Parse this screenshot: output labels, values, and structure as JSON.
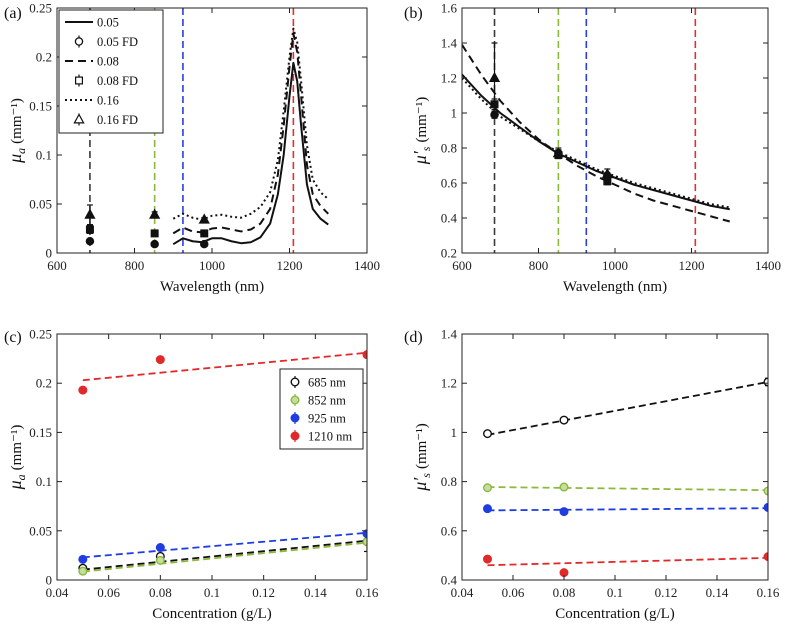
{
  "chart_data": [
    {
      "panel_label": "(a)",
      "type": "line",
      "xlabel": "Wavelength (nm)",
      "ylabel": "μ",
      "ylabel_sub": "a",
      "ylabel_unit": "(mm⁻¹)",
      "xlim": [
        600,
        1400
      ],
      "ylim": [
        0,
        0.25
      ],
      "xticks": [
        600,
        800,
        1000,
        1200,
        1400
      ],
      "yticks": [
        0,
        0.05,
        0.1,
        0.15,
        0.2,
        0.25
      ],
      "ytick_labels": [
        "0",
        "0.05",
        "0.1",
        "0.15",
        "0.2",
        "0.25"
      ],
      "legend_position": "top-left",
      "vlines": [
        {
          "x": 685,
          "color": "#3a3a3a"
        },
        {
          "x": 852,
          "color": "#8cb83c"
        },
        {
          "x": 925,
          "color": "#2a3ee0"
        },
        {
          "x": 1210,
          "color": "#e03030"
        }
      ],
      "series": [
        {
          "name": "0.05",
          "dash": "solid",
          "width": 2,
          "x": [
            900,
            925,
            950,
            975,
            1000,
            1025,
            1050,
            1075,
            1100,
            1125,
            1150,
            1170,
            1185,
            1200,
            1210,
            1220,
            1230,
            1245,
            1260,
            1280,
            1300
          ],
          "y": [
            0.009,
            0.015,
            0.012,
            0.011,
            0.015,
            0.015,
            0.012,
            0.01,
            0.011,
            0.016,
            0.03,
            0.06,
            0.1,
            0.16,
            0.194,
            0.175,
            0.13,
            0.07,
            0.045,
            0.035,
            0.029
          ]
        },
        {
          "name": "0.05 FD",
          "marker": "circle",
          "x": [
            685,
            852,
            980
          ],
          "y": [
            0.012,
            0.009,
            0.009
          ],
          "err": [
            0.002,
            0.002,
            0.001
          ]
        },
        {
          "name": "0.08",
          "dash": "dashed",
          "width": 2,
          "x": [
            900,
            925,
            950,
            975,
            1000,
            1025,
            1050,
            1075,
            1100,
            1125,
            1150,
            1170,
            1185,
            1200,
            1210,
            1220,
            1230,
            1245,
            1260,
            1280,
            1300
          ],
          "y": [
            0.02,
            0.026,
            0.022,
            0.021,
            0.025,
            0.026,
            0.024,
            0.022,
            0.024,
            0.03,
            0.045,
            0.08,
            0.13,
            0.19,
            0.224,
            0.205,
            0.16,
            0.09,
            0.06,
            0.048,
            0.04
          ]
        },
        {
          "name": "0.08 FD",
          "marker": "square",
          "x": [
            685,
            852,
            980
          ],
          "y": [
            0.024,
            0.02,
            0.02
          ],
          "err": [
            0.004,
            0.002,
            0.001
          ]
        },
        {
          "name": "0.16",
          "dash": "dotted",
          "width": 2,
          "x": [
            900,
            925,
            950,
            975,
            1000,
            1025,
            1050,
            1075,
            1100,
            1125,
            1150,
            1170,
            1185,
            1200,
            1210,
            1220,
            1230,
            1245,
            1260,
            1280,
            1300
          ],
          "y": [
            0.035,
            0.04,
            0.036,
            0.034,
            0.038,
            0.039,
            0.037,
            0.036,
            0.04,
            0.047,
            0.062,
            0.095,
            0.145,
            0.2,
            0.229,
            0.215,
            0.175,
            0.11,
            0.075,
            0.062,
            0.055
          ]
        },
        {
          "name": "0.16 FD",
          "marker": "triangle",
          "x": [
            685,
            852,
            980
          ],
          "y": [
            0.039,
            0.039,
            0.034
          ],
          "err": [
            0.01,
            0.003,
            0.002
          ]
        }
      ]
    },
    {
      "panel_label": "(b)",
      "type": "line",
      "xlabel": "Wavelength (nm)",
      "ylabel": "μ′",
      "ylabel_sub": "s",
      "ylabel_unit": "(mm⁻¹)",
      "xlim": [
        600,
        1400
      ],
      "ylim": [
        0.2,
        1.6
      ],
      "xticks": [
        600,
        800,
        1000,
        1200,
        1400
      ],
      "yticks": [
        0.2,
        0.4,
        0.6,
        0.8,
        1,
        1.2,
        1.4,
        1.6
      ],
      "ytick_labels": [
        "0.2",
        "0.4",
        "0.6",
        "0.8",
        "1",
        "1.2",
        "1.4",
        "1.6"
      ],
      "vlines": [
        {
          "x": 685,
          "color": "#3a3a3a"
        },
        {
          "x": 852,
          "color": "#8cb83c"
        },
        {
          "x": 925,
          "color": "#2a3ee0"
        },
        {
          "x": 1210,
          "color": "#e03030"
        }
      ],
      "series": [
        {
          "name": "0.05",
          "dash": "solid",
          "width": 2,
          "x": [
            600,
            650,
            700,
            750,
            800,
            850,
            900,
            950,
            1000,
            1050,
            1100,
            1150,
            1200,
            1250,
            1300
          ],
          "y": [
            1.22,
            1.1,
            1.0,
            0.92,
            0.84,
            0.77,
            0.72,
            0.67,
            0.63,
            0.59,
            0.56,
            0.53,
            0.5,
            0.47,
            0.45
          ]
        },
        {
          "name": "0.05 FD",
          "marker": "circle",
          "x": [
            685,
            852,
            980
          ],
          "y": [
            0.99,
            0.77,
            0.64
          ],
          "err": [
            0.02,
            0.02,
            0.02
          ]
        },
        {
          "name": "0.08",
          "dash": "dashed",
          "width": 2,
          "x": [
            600,
            650,
            700,
            750,
            800,
            850,
            900,
            950,
            1000,
            1050,
            1100,
            1150,
            1200,
            1250,
            1300
          ],
          "y": [
            1.39,
            1.22,
            1.07,
            0.95,
            0.85,
            0.77,
            0.7,
            0.64,
            0.59,
            0.54,
            0.5,
            0.47,
            0.44,
            0.41,
            0.38
          ]
        },
        {
          "name": "0.08 FD",
          "marker": "square",
          "x": [
            685,
            852,
            980
          ],
          "y": [
            1.05,
            0.76,
            0.61
          ],
          "err": [
            0.03,
            0.02,
            0.02
          ]
        },
        {
          "name": "0.16",
          "dash": "dotted",
          "width": 2,
          "x": [
            600,
            650,
            700,
            750,
            800,
            850,
            900,
            950,
            1000,
            1050,
            1100,
            1150,
            1200,
            1250,
            1300
          ],
          "y": [
            1.2,
            1.08,
            0.98,
            0.91,
            0.84,
            0.78,
            0.73,
            0.68,
            0.64,
            0.6,
            0.57,
            0.54,
            0.51,
            0.48,
            0.46
          ]
        },
        {
          "name": "0.16 FD",
          "marker": "triangle",
          "x": [
            685,
            852,
            980
          ],
          "y": [
            1.2,
            0.77,
            0.65
          ],
          "err": [
            0.2,
            0.03,
            0.03
          ]
        }
      ]
    },
    {
      "panel_label": "(c)",
      "type": "scatter",
      "xlabel": "Concentration (g/L)",
      "ylabel": "μ",
      "ylabel_sub": "a",
      "ylabel_unit": "(mm⁻¹)",
      "xlim": [
        0.04,
        0.16
      ],
      "ylim": [
        0,
        0.25
      ],
      "xticks": [
        0.04,
        0.06,
        0.08,
        0.1,
        0.12,
        0.14,
        0.16
      ],
      "xtick_labels": [
        "0.04",
        "0.06",
        "0.08",
        "0.1",
        "0.12",
        "0.14",
        "0.16"
      ],
      "yticks": [
        0,
        0.05,
        0.1,
        0.15,
        0.2,
        0.25
      ],
      "ytick_labels": [
        "0",
        "0.05",
        "0.1",
        "0.15",
        "0.2",
        "0.25"
      ],
      "legend_position": "right-center",
      "series": [
        {
          "name": "685 nm",
          "color": "#111111",
          "style": "open",
          "x": [
            0.05,
            0.08,
            0.16
          ],
          "y": [
            0.012,
            0.024,
            0.039
          ],
          "err": [
            0.002,
            0.003,
            0.01
          ],
          "fit": [
            0.05,
            0.0105,
            0.16,
            0.04
          ]
        },
        {
          "name": "852 nm",
          "color": "#8cb83c",
          "style": "halffill",
          "x": [
            0.05,
            0.08,
            0.16
          ],
          "y": [
            0.009,
            0.02,
            0.039
          ],
          "err": [
            0.002,
            0.002,
            0.003
          ],
          "fit": [
            0.05,
            0.0085,
            0.16,
            0.038
          ]
        },
        {
          "name": "925 nm",
          "color": "#1f3de0",
          "style": "filled",
          "x": [
            0.05,
            0.08,
            0.16
          ],
          "y": [
            0.021,
            0.033,
            0.047
          ],
          "err": [
            0.001,
            0.001,
            0.002
          ],
          "fit": [
            0.05,
            0.023,
            0.16,
            0.048
          ]
        },
        {
          "name": "1210 nm",
          "color": "#e02a2a",
          "style": "filled",
          "x": [
            0.05,
            0.08,
            0.16
          ],
          "y": [
            0.193,
            0.224,
            0.229
          ],
          "err": [
            0.002,
            0.002,
            0.002
          ],
          "fit": [
            0.05,
            0.203,
            0.16,
            0.231
          ]
        }
      ]
    },
    {
      "panel_label": "(d)",
      "type": "scatter",
      "xlabel": "Concentration (g/L)",
      "ylabel": "μ′",
      "ylabel_sub": "s",
      "ylabel_unit": "(mm⁻¹)",
      "xlim": [
        0.04,
        0.16
      ],
      "ylim": [
        0.4,
        1.4
      ],
      "xticks": [
        0.04,
        0.06,
        0.08,
        0.1,
        0.12,
        0.14,
        0.16
      ],
      "xtick_labels": [
        "0.04",
        "0.06",
        "0.08",
        "0.1",
        "0.12",
        "0.14",
        "0.16"
      ],
      "yticks": [
        0.4,
        0.6,
        0.8,
        1,
        1.2,
        1.4
      ],
      "ytick_labels": [
        "0.4",
        "0.6",
        "0.8",
        "1",
        "1.2",
        "1.4"
      ],
      "series": [
        {
          "name": "685 nm",
          "color": "#111111",
          "style": "open",
          "x": [
            0.05,
            0.08,
            0.16
          ],
          "y": [
            0.995,
            1.05,
            1.205
          ],
          "err": [
            0.01,
            0.01,
            0.015
          ],
          "fit": [
            0.05,
            0.99,
            0.16,
            1.205
          ]
        },
        {
          "name": "852 nm",
          "color": "#8cb83c",
          "style": "halffill",
          "x": [
            0.05,
            0.08,
            0.16
          ],
          "y": [
            0.775,
            0.778,
            0.762
          ],
          "err": [
            0.01,
            0.01,
            0.01
          ],
          "fit": [
            0.05,
            0.778,
            0.16,
            0.765
          ]
        },
        {
          "name": "925 nm",
          "color": "#1f3de0",
          "style": "filled",
          "x": [
            0.05,
            0.08,
            0.16
          ],
          "y": [
            0.69,
            0.678,
            0.695
          ],
          "err": [
            0.005,
            0.005,
            0.005
          ],
          "fit": [
            0.05,
            0.683,
            0.16,
            0.692
          ]
        },
        {
          "name": "1210 nm",
          "color": "#e02a2a",
          "style": "filled",
          "x": [
            0.05,
            0.08,
            0.16
          ],
          "y": [
            0.485,
            0.43,
            0.495
          ],
          "err": [
            0.005,
            0.005,
            0.005
          ],
          "fit": [
            0.05,
            0.46,
            0.16,
            0.49
          ]
        }
      ]
    }
  ]
}
